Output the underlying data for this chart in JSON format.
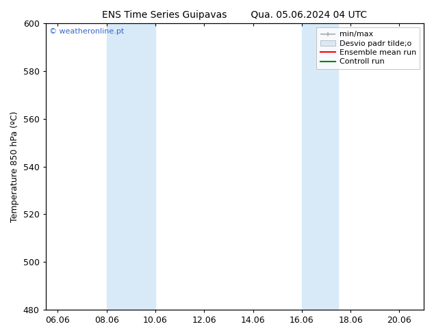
{
  "title": "ENS Time Series Guipavas        Qua. 05.06.2024 04 UTC",
  "ylabel": "Temperature 850 hPa (ºC)",
  "xlim_start": 5.5,
  "xlim_end": 21.0,
  "ylim": [
    480,
    600
  ],
  "yticks": [
    480,
    500,
    520,
    540,
    560,
    580,
    600
  ],
  "xtick_labels": [
    "06.06",
    "08.06",
    "10.06",
    "12.06",
    "14.06",
    "16.06",
    "18.06",
    "20.06"
  ],
  "xtick_positions": [
    6.0,
    8.0,
    10.0,
    12.0,
    14.0,
    16.0,
    18.0,
    20.0
  ],
  "shaded_bands": [
    {
      "x_start": 8.0,
      "x_end": 10.0,
      "color": "#d8eaf8"
    },
    {
      "x_start": 16.0,
      "x_end": 17.5,
      "color": "#d8eaf8"
    }
  ],
  "watermark_text": "© weatheronline.pt",
  "watermark_color": "#3366cc",
  "bg_color": "#ffffff",
  "legend_minmax_color": "#aaaaaa",
  "legend_std_color": "#d8eaf8",
  "legend_std_edge_color": "#aaaaaa",
  "legend_ens_color": "red",
  "legend_ctrl_color": "green",
  "title_fontsize": 10,
  "label_fontsize": 9,
  "tick_fontsize": 9,
  "legend_fontsize": 8
}
